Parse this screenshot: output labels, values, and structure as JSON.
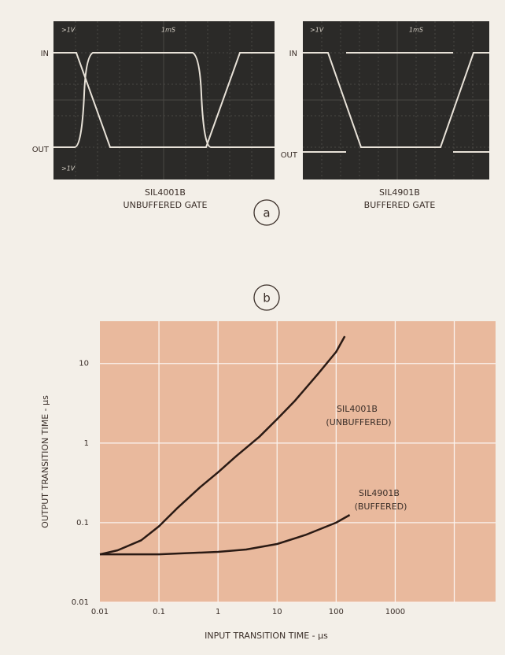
{
  "panels": [
    {
      "in_label": "IN",
      "out_label": "OUT",
      "volts_top": ">1V",
      "time": "1mS",
      "volts_bottom": ">1V",
      "part": "SIL4001B",
      "caption": "UNBUFFERED GATE"
    },
    {
      "in_label": "IN",
      "out_label": "OUT",
      "volts_top": ">1V",
      "time": "1mS",
      "part": "SIL4901B",
      "caption": "BUFFERED GATE"
    }
  ],
  "marker_a": "a",
  "marker_b": "b",
  "chart_data": {
    "type": "line",
    "xlabel": "INPUT TRANSITION TIME - μs",
    "ylabel": "OUTPUT TRANSITION TIME - μs",
    "log_x": true,
    "log_y": true,
    "grid": true,
    "xlim": [
      0.01,
      50000
    ],
    "ylim": [
      0.01,
      34
    ],
    "xticks": [
      0.01,
      0.1,
      1,
      10,
      100,
      1000
    ],
    "xgrid_lines": [
      0.1,
      1,
      10,
      100,
      1000,
      10000
    ],
    "yticks": [
      0.01,
      0.1,
      1,
      10
    ],
    "series": [
      {
        "name": "SIL4001B",
        "note": "(UNBUFFERED)",
        "color": "#2a1a14",
        "x": [
          0.01,
          0.02,
          0.05,
          0.1,
          0.2,
          0.5,
          1,
          2,
          5,
          10,
          20,
          50,
          100,
          140
        ],
        "values": [
          0.04,
          0.045,
          0.06,
          0.09,
          0.15,
          0.28,
          0.43,
          0.68,
          1.2,
          2,
          3.4,
          7.5,
          14,
          22
        ]
      },
      {
        "name": "SIL4901B",
        "note": "(BUFFERED)",
        "color": "#2a1a14",
        "x": [
          0.01,
          0.1,
          1,
          3,
          10,
          30,
          100,
          170
        ],
        "values": [
          0.04,
          0.04,
          0.043,
          0.046,
          0.054,
          0.07,
          0.1,
          0.125
        ]
      }
    ]
  }
}
